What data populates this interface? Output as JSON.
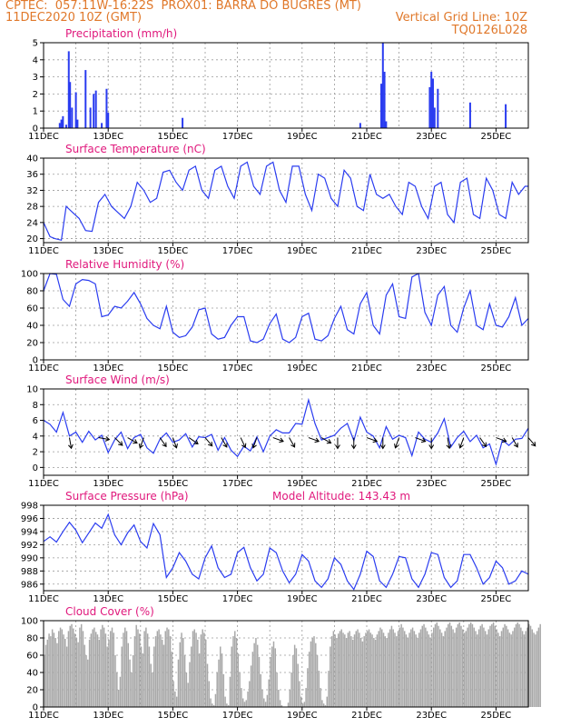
{
  "header": {
    "line1_left": "CPTEC:  057:11W-16:22S  PROX01: BARRA DO BUGRES (MT)",
    "line2_left": "11DEC2020 10Z (GMT)",
    "line2_right": "Vertical Grid Line: 10Z",
    "line3_right": "TQ0126L028"
  },
  "colors": {
    "header": "#e0782a",
    "title": "#e0187c",
    "series": "#2a3cf0",
    "cloud": "#a8a8a8",
    "wind_arrow": "#000000"
  },
  "x_axis": {
    "labels": [
      "11DEC",
      "13DEC",
      "15DEC",
      "17DEC",
      "19DEC",
      "21DEC",
      "23DEC",
      "25DEC"
    ],
    "label_days": [
      0,
      2,
      4,
      6,
      8,
      10,
      12,
      14
    ],
    "range_days": [
      0,
      15
    ]
  },
  "chart_data": [
    {
      "type": "bar",
      "title": "Precipitation (mm/h)",
      "ylim": [
        0,
        5
      ],
      "yticks": [
        "0",
        "1",
        "2",
        "3",
        "4",
        "5"
      ],
      "grid": true,
      "x_days": [
        0.5,
        0.55,
        0.6,
        0.7,
        0.78,
        0.82,
        0.88,
        1.0,
        1.05,
        1.3,
        1.45,
        1.55,
        1.62,
        1.8,
        1.95,
        2.0,
        4.3,
        9.8,
        10.45,
        10.5,
        10.55,
        10.6,
        11.95,
        12.0,
        12.05,
        12.1,
        12.2,
        13.2,
        14.3
      ],
      "values": [
        0.3,
        0.5,
        0.7,
        0.2,
        4.5,
        2.7,
        1.2,
        2.1,
        0.5,
        3.4,
        1.2,
        2.0,
        2.2,
        0.3,
        2.3,
        0.9,
        0.6,
        0.3,
        2.6,
        5.0,
        3.3,
        0.4,
        2.4,
        3.3,
        2.9,
        1.2,
        2.3,
        1.5,
        1.4
      ]
    },
    {
      "type": "line",
      "title": "Surface Temperature (nC)",
      "ylim": [
        19,
        40
      ],
      "yticks": [
        "20",
        "24",
        "28",
        "32",
        "36",
        "40"
      ],
      "grid": true,
      "series": [
        {
          "x": [
            0,
            0.2,
            0.35,
            0.55,
            0.7,
            0.9,
            1.1,
            1.3,
            1.5,
            1.7,
            1.9,
            2.1,
            2.3,
            2.5,
            2.7,
            2.9,
            3.1,
            3.3,
            3.5,
            3.7,
            3.9,
            4.1,
            4.3,
            4.5,
            4.7,
            4.9,
            5.1,
            5.3,
            5.5,
            5.7,
            5.9,
            6.1,
            6.3,
            6.5,
            6.7,
            6.9,
            7.1,
            7.3,
            7.5,
            7.7,
            7.9,
            8.1,
            8.3,
            8.5,
            8.7,
            8.9,
            9.1,
            9.3,
            9.5,
            9.7,
            9.9,
            10.1,
            10.3,
            10.5,
            10.7,
            10.9,
            11.1,
            11.3,
            11.5,
            11.7,
            11.9,
            12.1,
            12.3,
            12.5,
            12.7,
            12.9,
            13.1,
            13.3,
            13.5,
            13.7,
            13.9,
            14.1,
            14.3,
            14.5,
            14.7,
            14.9,
            15.0
          ],
          "values": [
            24,
            20.5,
            20,
            19.6,
            28,
            26.5,
            25,
            22,
            21.8,
            29,
            31,
            28,
            26.5,
            25,
            28,
            34,
            32,
            29,
            30,
            36.5,
            37,
            34,
            32,
            37,
            38,
            32,
            30,
            37,
            38,
            33,
            30,
            38,
            39,
            33,
            31,
            38,
            39,
            32,
            29,
            38,
            38,
            31,
            27,
            36,
            35,
            30,
            28,
            37,
            35,
            28,
            27,
            36,
            31,
            30,
            31,
            28,
            26,
            34,
            33,
            28,
            25,
            33,
            34,
            26,
            24,
            34,
            35,
            26,
            25,
            35,
            32,
            26,
            25,
            34,
            31,
            33,
            33
          ]
        }
      ]
    },
    {
      "type": "line",
      "title": "Relative Humidity (%)",
      "ylim": [
        0,
        100
      ],
      "yticks": [
        "0",
        "20",
        "40",
        "60",
        "80",
        "100"
      ],
      "grid": true,
      "series": [
        {
          "x": [
            0,
            0.2,
            0.4,
            0.6,
            0.8,
            1.0,
            1.2,
            1.4,
            1.6,
            1.8,
            2.0,
            2.2,
            2.4,
            2.6,
            2.8,
            3.0,
            3.2,
            3.4,
            3.6,
            3.8,
            4.0,
            4.2,
            4.4,
            4.6,
            4.8,
            5.0,
            5.2,
            5.4,
            5.6,
            5.8,
            6.0,
            6.2,
            6.4,
            6.6,
            6.8,
            7.0,
            7.2,
            7.4,
            7.6,
            7.8,
            8.0,
            8.2,
            8.4,
            8.6,
            8.8,
            9.0,
            9.2,
            9.4,
            9.6,
            9.8,
            10.0,
            10.2,
            10.4,
            10.6,
            10.8,
            11.0,
            11.2,
            11.4,
            11.6,
            11.8,
            12.0,
            12.2,
            12.4,
            12.6,
            12.8,
            13.0,
            13.2,
            13.4,
            13.6,
            13.8,
            14.0,
            14.2,
            14.4,
            14.6,
            14.8,
            15.0
          ],
          "values": [
            80,
            100,
            99,
            70,
            62,
            88,
            93,
            92,
            88,
            50,
            52,
            62,
            60,
            68,
            78,
            65,
            48,
            40,
            36,
            62,
            32,
            26,
            28,
            38,
            58,
            60,
            30,
            24,
            26,
            40,
            50,
            50,
            22,
            20,
            24,
            42,
            53,
            24,
            20,
            26,
            50,
            54,
            24,
            22,
            28,
            48,
            62,
            35,
            30,
            65,
            78,
            40,
            30,
            75,
            88,
            50,
            48,
            96,
            100,
            55,
            40,
            75,
            85,
            40,
            32,
            60,
            80,
            40,
            35,
            65,
            40,
            38,
            50,
            72,
            40,
            48
          ]
        }
      ]
    },
    {
      "type": "line",
      "title": "Surface Wind (m/s)",
      "ylim": [
        -1,
        10
      ],
      "yticks": [
        "0",
        "2",
        "4",
        "6",
        "8",
        "10"
      ],
      "grid": true,
      "series": [
        {
          "x": [
            0,
            0.2,
            0.4,
            0.6,
            0.8,
            1.0,
            1.2,
            1.4,
            1.6,
            1.8,
            2.0,
            2.2,
            2.4,
            2.6,
            2.8,
            3.0,
            3.2,
            3.4,
            3.6,
            3.8,
            4.0,
            4.2,
            4.4,
            4.6,
            4.8,
            5.0,
            5.2,
            5.4,
            5.6,
            5.8,
            6.0,
            6.2,
            6.4,
            6.6,
            6.8,
            7.0,
            7.2,
            7.4,
            7.6,
            7.8,
            8.0,
            8.2,
            8.4,
            8.6,
            8.8,
            9.0,
            9.2,
            9.4,
            9.6,
            9.8,
            10.0,
            10.2,
            10.4,
            10.6,
            10.8,
            11.0,
            11.2,
            11.4,
            11.6,
            11.8,
            12.0,
            12.2,
            12.4,
            12.6,
            12.8,
            13.0,
            13.2,
            13.4,
            13.6,
            13.8,
            14.0,
            14.2,
            14.4,
            14.6,
            14.8,
            15.0
          ],
          "values": [
            6,
            5.5,
            4.5,
            7,
            4,
            4.5,
            3.2,
            4.6,
            3.5,
            4.1,
            1.9,
            3.5,
            4.5,
            2.4,
            3.8,
            4.2,
            2.5,
            1.8,
            3.6,
            4.4,
            3.2,
            3.5,
            4.3,
            2.6,
            3.9,
            3.8,
            4.2,
            2.2,
            3.8,
            2.2,
            1.4,
            2.7,
            2.1,
            3.9,
            2.0,
            4.0,
            4.8,
            4.4,
            4.4,
            5.6,
            5.5,
            8.6,
            5.6,
            3.5,
            3.8,
            4.1,
            5.0,
            5.6,
            3.4,
            6.4,
            4.5,
            4.0,
            2.5,
            5.2,
            3.6,
            4.1,
            3.8,
            1.5,
            4.5,
            3.6,
            3.2,
            4.4,
            6.2,
            2.6,
            3.8,
            4.6,
            3.3,
            4.1,
            2.5,
            3.0,
            0.4,
            3.5,
            2.8,
            3.6,
            3.7,
            5.0
          ]
        }
      ],
      "wind_arrows": [
        {
          "x": 0.8,
          "angle": -170
        },
        {
          "x": 1.7,
          "angle": -100
        },
        {
          "x": 2.2,
          "angle": -135
        },
        {
          "x": 2.6,
          "angle": -120
        },
        {
          "x": 3.1,
          "angle": -200
        },
        {
          "x": 3.6,
          "angle": -145
        },
        {
          "x": 4.0,
          "angle": -160
        },
        {
          "x": 4.5,
          "angle": -125
        },
        {
          "x": 5.0,
          "angle": -140
        },
        {
          "x": 5.5,
          "angle": -150
        },
        {
          "x": 6.1,
          "angle": -155
        },
        {
          "x": 6.6,
          "angle": -200
        },
        {
          "x": 7.1,
          "angle": -110
        },
        {
          "x": 7.6,
          "angle": -150
        },
        {
          "x": 8.2,
          "angle": -110
        },
        {
          "x": 8.6,
          "angle": -120
        },
        {
          "x": 9.1,
          "angle": -180
        },
        {
          "x": 9.6,
          "angle": -180
        },
        {
          "x": 10.0,
          "angle": -110
        },
        {
          "x": 10.5,
          "angle": -180
        },
        {
          "x": 11.0,
          "angle": -200
        },
        {
          "x": 11.5,
          "angle": -110
        },
        {
          "x": 12.0,
          "angle": -180
        },
        {
          "x": 12.5,
          "angle": -170
        },
        {
          "x": 13.0,
          "angle": -200
        },
        {
          "x": 13.5,
          "angle": -145
        },
        {
          "x": 14.0,
          "angle": -110
        },
        {
          "x": 14.5,
          "angle": -150
        },
        {
          "x": 15.0,
          "angle": -140
        }
      ]
    },
    {
      "type": "line",
      "title": "Surface Pressure (hPa)",
      "ylim": [
        985,
        998
      ],
      "yticks": [
        "986",
        "988",
        "990",
        "992",
        "994",
        "996",
        "998"
      ],
      "grid": true,
      "annotation": "Model Altitude: 143.43 m",
      "series": [
        {
          "x": [
            0,
            0.2,
            0.4,
            0.6,
            0.8,
            1.0,
            1.2,
            1.4,
            1.6,
            1.8,
            2.0,
            2.2,
            2.4,
            2.6,
            2.8,
            3.0,
            3.2,
            3.4,
            3.6,
            3.8,
            4.0,
            4.2,
            4.4,
            4.6,
            4.8,
            5.0,
            5.2,
            5.4,
            5.6,
            5.8,
            6.0,
            6.2,
            6.4,
            6.6,
            6.8,
            7.0,
            7.2,
            7.4,
            7.6,
            7.8,
            8.0,
            8.2,
            8.4,
            8.6,
            8.8,
            9.0,
            9.2,
            9.4,
            9.6,
            9.8,
            10.0,
            10.2,
            10.4,
            10.6,
            10.8,
            11.0,
            11.2,
            11.4,
            11.6,
            11.8,
            12.0,
            12.2,
            12.4,
            12.6,
            12.8,
            13.0,
            13.2,
            13.4,
            13.6,
            13.8,
            14.0,
            14.2,
            14.4,
            14.6,
            14.8,
            15.0
          ],
          "values": [
            992.5,
            993.2,
            992.4,
            994,
            995.4,
            994.2,
            992.3,
            993.8,
            995.3,
            994.5,
            996.6,
            993.5,
            992,
            993.8,
            995,
            992.5,
            991.5,
            995.2,
            993.5,
            987,
            988.5,
            990.8,
            989.5,
            987.5,
            986.8,
            990,
            991.8,
            988.5,
            987,
            987.5,
            990.8,
            991.6,
            988.5,
            986.5,
            987.5,
            991.5,
            990.8,
            988,
            986.2,
            987.5,
            990.5,
            989.5,
            986.5,
            985.5,
            986.8,
            990,
            989,
            986.5,
            985.2,
            987.5,
            991,
            990.2,
            986.5,
            985.5,
            987.5,
            990.2,
            990,
            986.8,
            985.5,
            987.5,
            990.8,
            990.5,
            987,
            985.5,
            986.5,
            990.5,
            990.5,
            988.5,
            986,
            987,
            989.5,
            988.5,
            986,
            986.5,
            988,
            987.5
          ]
        }
      ]
    },
    {
      "type": "bar",
      "title": "Cloud Cover (%)",
      "ylim": [
        0,
        100
      ],
      "yticks": [
        "0",
        "20",
        "40",
        "60",
        "80",
        "100"
      ],
      "grid": true,
      "bar_day_step": 0.05,
      "values": [
        60,
        72,
        78,
        85,
        82,
        90,
        86,
        80,
        74,
        88,
        92,
        90,
        84,
        79,
        70,
        88,
        94,
        96,
        91,
        85,
        80,
        75,
        92,
        96,
        88,
        72,
        60,
        55,
        78,
        85,
        90,
        92,
        87,
        84,
        78,
        90,
        95,
        92,
        85,
        70,
        78,
        88,
        92,
        86,
        60,
        40,
        20,
        35,
        70,
        86,
        92,
        88,
        74,
        55,
        40,
        60,
        82,
        95,
        90,
        85,
        70,
        62,
        88,
        92,
        85,
        70,
        50,
        40,
        70,
        82,
        88,
        90,
        84,
        78,
        72,
        88,
        92,
        90,
        82,
        64,
        30,
        18,
        12,
        55,
        75,
        86,
        80,
        60,
        40,
        28,
        52,
        70,
        88,
        90,
        86,
        78,
        62,
        84,
        90,
        86,
        78,
        50,
        30,
        10,
        4,
        2,
        15,
        40,
        55,
        70,
        62,
        38,
        12,
        4,
        2,
        35,
        70,
        82,
        88,
        80,
        62,
        40,
        22,
        10,
        6,
        8,
        18,
        30,
        48,
        64,
        74,
        80,
        72,
        58,
        38,
        20,
        10,
        6,
        14,
        32,
        58,
        70,
        76,
        68,
        40,
        20,
        8,
        2,
        0,
        0,
        0,
        5,
        20,
        40,
        60,
        72,
        68,
        50,
        30,
        12,
        4,
        6,
        22,
        45,
        64,
        76,
        80,
        82,
        74,
        60,
        42,
        22,
        8,
        4,
        2,
        12,
        42,
        70,
        82,
        88,
        84,
        80,
        85,
        88,
        90,
        86,
        84,
        80,
        86,
        88,
        82,
        78,
        84,
        88,
        90,
        86,
        80,
        76,
        82,
        86,
        88,
        90,
        86,
        84,
        80,
        78,
        84,
        88,
        92,
        90,
        86,
        82,
        80,
        86,
        90,
        94,
        90,
        86,
        82,
        88,
        92,
        96,
        92,
        88,
        84,
        80,
        86,
        90,
        92,
        88,
        84,
        80,
        86,
        90,
        94,
        96,
        92,
        88,
        84,
        80,
        86,
        92,
        96,
        98,
        94,
        90,
        86,
        82,
        88,
        92,
        96,
        98,
        94,
        90,
        86,
        92,
        96,
        98,
        94,
        90,
        86,
        88,
        92,
        96,
        98,
        96,
        92,
        88,
        84,
        90,
        94,
        96,
        92,
        88,
        84,
        90,
        94,
        96,
        98,
        94,
        90,
        86,
        82,
        88,
        92,
        96,
        94,
        90,
        86,
        84,
        88,
        92,
        96,
        98,
        96,
        92,
        88,
        84,
        88,
        92,
        96,
        94,
        90,
        86,
        84,
        88,
        92,
        96
      ]
    }
  ]
}
